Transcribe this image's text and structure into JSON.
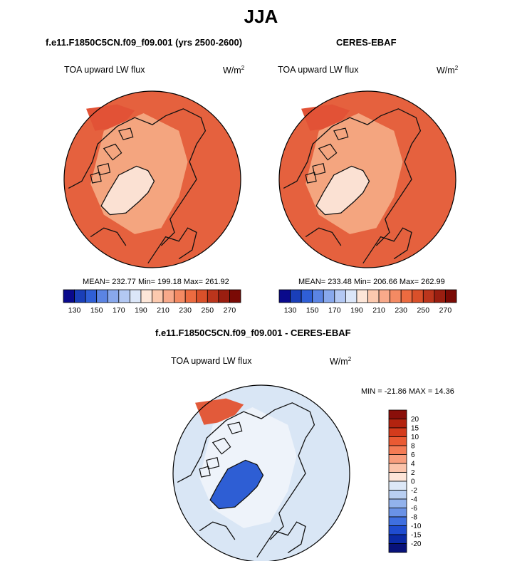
{
  "page_title": "JJA",
  "colors": {
    "ocean_main": "#e5613e",
    "land_main": "#f4a57f",
    "coast": "#111111",
    "diff_ocean": "#d9e6f5"
  },
  "chart_data": [
    {
      "type": "heatmap",
      "title": "f.e11.F1850C5CN.f09_f09.001 (yrs 2500-2600)",
      "subtitle": "TOA upward LW flux",
      "unit_base": "W/m",
      "unit_exp": "2",
      "stats": {
        "mean": "232.77",
        "min": "199.18",
        "max": "261.92"
      },
      "stats_text": "MEAN= 232.77  Min= 199.18  Max= 261.92",
      "projection": "north polar stereographic",
      "colorbar": {
        "orientation": "horizontal",
        "levels": [
          130,
          140,
          150,
          160,
          170,
          180,
          190,
          200,
          210,
          220,
          230,
          240,
          250,
          260,
          270
        ],
        "tick_labels": [
          "130",
          "150",
          "170",
          "190",
          "210",
          "230",
          "250",
          "270"
        ],
        "colors": [
          "#0a0a8c",
          "#1a3fb8",
          "#2f5fd6",
          "#5b84e3",
          "#88a8ec",
          "#b3c8f3",
          "#dbe6f8",
          "#fde6d8",
          "#fcc9ae",
          "#f8a98a",
          "#f48a63",
          "#ec6b40",
          "#d9502a",
          "#bb351c",
          "#9a1e10",
          "#7a0a05"
        ]
      }
    },
    {
      "type": "heatmap",
      "title": "CERES-EBAF",
      "subtitle": "TOA upward LW flux",
      "unit_base": "W/m",
      "unit_exp": "2",
      "stats": {
        "mean": "233.48",
        "min": "206.66",
        "max": "262.99"
      },
      "stats_text": "MEAN= 233.48  Min= 206.66  Max= 262.99",
      "projection": "north polar stereographic",
      "colorbar": {
        "orientation": "horizontal",
        "levels": [
          130,
          140,
          150,
          160,
          170,
          180,
          190,
          200,
          210,
          220,
          230,
          240,
          250,
          260,
          270
        ],
        "tick_labels": [
          "130",
          "150",
          "170",
          "190",
          "210",
          "230",
          "250",
          "270"
        ],
        "colors": [
          "#0a0a8c",
          "#1a3fb8",
          "#2f5fd6",
          "#5b84e3",
          "#88a8ec",
          "#b3c8f3",
          "#dbe6f8",
          "#fde6d8",
          "#fcc9ae",
          "#f8a98a",
          "#f48a63",
          "#ec6b40",
          "#d9502a",
          "#bb351c",
          "#9a1e10",
          "#7a0a05"
        ]
      }
    },
    {
      "type": "heatmap",
      "title": "f.e11.F1850C5CN.f09_f09.001 - CERES-EBAF",
      "subtitle": "TOA upward LW flux",
      "unit_base": "W/m",
      "unit_exp": "2",
      "stats": {
        "min": "-21.86",
        "max": "14.36"
      },
      "stats_text": "MIN = -21.86 MAX =  14.36",
      "projection": "north polar stereographic",
      "colorbar": {
        "orientation": "vertical",
        "levels": [
          20,
          15,
          10,
          8,
          6,
          4,
          2,
          0,
          -2,
          -4,
          -6,
          -8,
          -10,
          -15,
          -20
        ],
        "tick_labels": [
          "20",
          "15",
          "10",
          "8",
          "6",
          "4",
          "2",
          "0",
          "-2",
          "-4",
          "-6",
          "-8",
          "-10",
          "-15",
          "-20"
        ],
        "colors": [
          "#8a0f0a",
          "#b3230f",
          "#d43b1c",
          "#ea5a33",
          "#f47b55",
          "#f89d7d",
          "#fbc3aa",
          "#fde5d8",
          "#dde8f7",
          "#b9cff2",
          "#92b2ec",
          "#6a92e6",
          "#3f6fe0",
          "#1f4cd0",
          "#0b2aa6",
          "#08127a"
        ]
      }
    }
  ]
}
